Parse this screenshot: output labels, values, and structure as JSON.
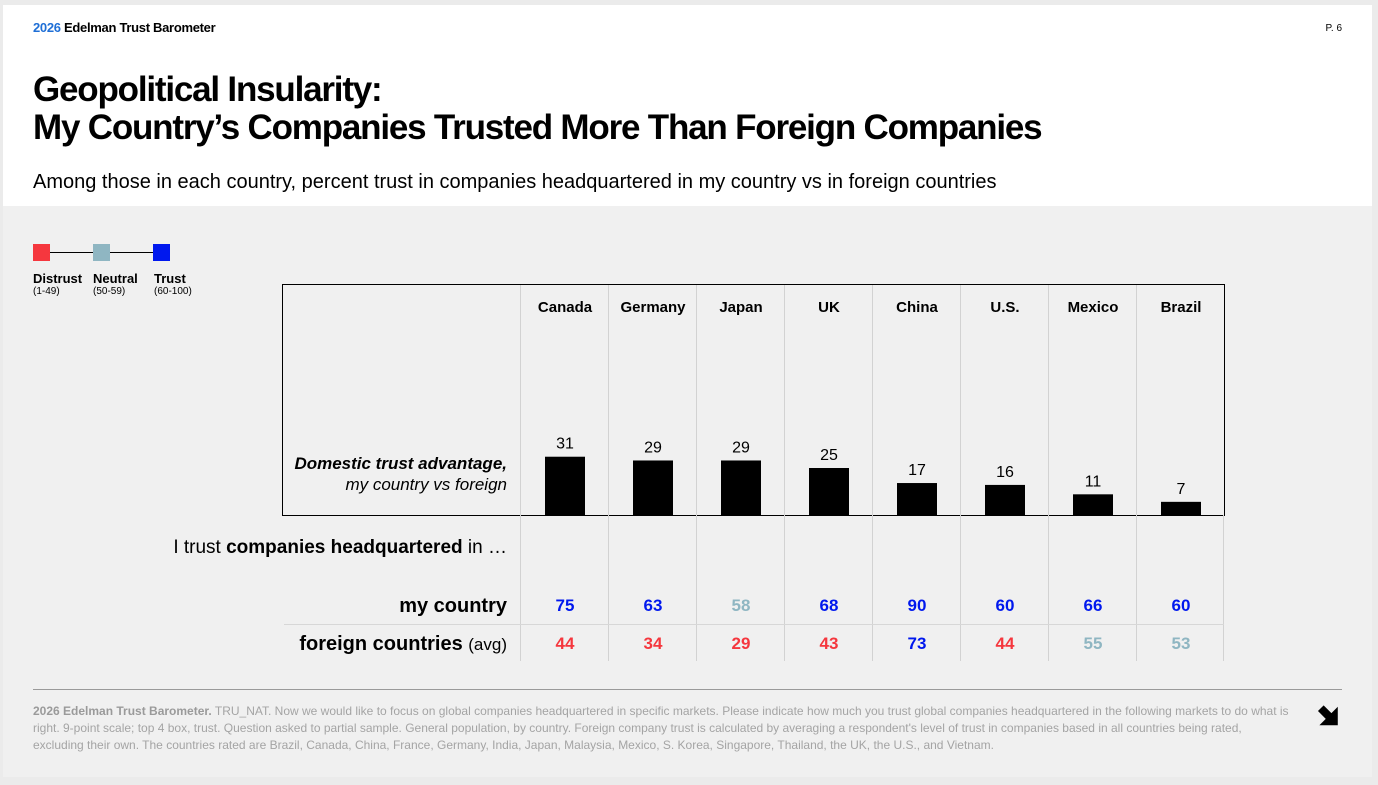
{
  "header": {
    "year": "2026",
    "brand": "Edelman Trust Barometer",
    "page": "P. 6"
  },
  "title_line1": "Geopolitical Insularity:",
  "title_line2": "My Country’s Companies Trusted More Than Foreign Companies",
  "subtitle": "Among those in each country, percent trust in companies headquartered in my country vs in foreign countries",
  "legend": [
    {
      "name": "Distrust",
      "range": "(1-49)",
      "color": "#f5373e"
    },
    {
      "name": "Neutral",
      "range": "(50-59)",
      "color": "#8fb6c2"
    },
    {
      "name": "Trust",
      "range": "(60-100)",
      "color": "#0018ee"
    }
  ],
  "chart_data": {
    "type": "bar",
    "categories": [
      "Canada",
      "Germany",
      "Japan",
      "UK",
      "China",
      "U.S.",
      "Mexico",
      "Brazil"
    ],
    "values": [
      31,
      29,
      29,
      25,
      17,
      16,
      11,
      7
    ],
    "label_line1": "Domestic trust advantage,",
    "label_line2": "my country vs foreign",
    "bar_color": "#000000"
  },
  "table": {
    "intro_pre": "I trust ",
    "intro_bold": "companies headquartered",
    "intro_post": " in …",
    "rows": [
      {
        "label": "my country",
        "suffix": "",
        "values": [
          75,
          63,
          58,
          68,
          90,
          60,
          66,
          60
        ]
      },
      {
        "label": "foreign countries",
        "suffix": "(avg)",
        "values": [
          44,
          34,
          29,
          43,
          73,
          44,
          55,
          53
        ]
      }
    ]
  },
  "footnote": {
    "bold": "2026 Edelman Trust Barometer.",
    "text": " TRU_NAT. Now we would like to focus on global companies headquartered in specific markets. Please indicate how much you trust global companies headquartered in the following markets to do what is right. 9-point scale; top 4 box, trust. Question asked to partial sample. General population, by country. Foreign company trust is calculated by averaging a respondent's level of trust in companies based in all countries being rated, excluding their own. The countries rated are Brazil, Canada, China, France, Germany, India, Japan, Malaysia, Mexico, S. Korea, Singapore, Thailand, the UK, the U.S., and Vietnam."
  }
}
